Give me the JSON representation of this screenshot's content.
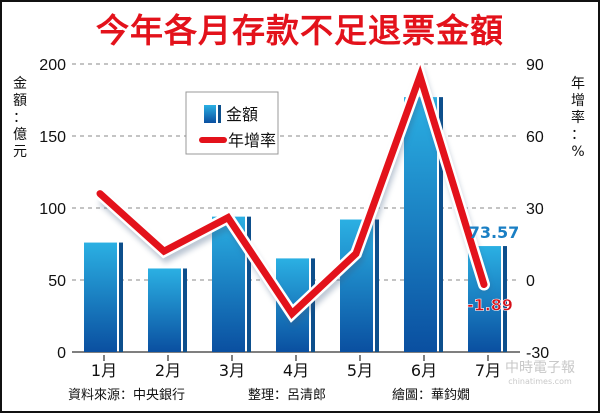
{
  "title": "今年各月存款不足退票金額",
  "left_axis_label": [
    "金",
    "額",
    "：",
    "億",
    "元"
  ],
  "right_axis_label": [
    "年",
    "增",
    "率",
    "：",
    "%"
  ],
  "legend": {
    "bar_label": "金額",
    "line_label": "年增率"
  },
  "callouts": {
    "amount": "73.57",
    "rate": "-1.89"
  },
  "credits": {
    "source": "資料來源：中央銀行",
    "editor": "整理：呂清郎",
    "artist": "繪圖：華鈞嫺"
  },
  "watermark": "中時電子報 chinatimes.com",
  "colors": {
    "title": "#e3121b",
    "bar": "#1a87c9",
    "bar_dark": "#0d4f8c",
    "line": "#e3121b",
    "callout_amount": "#1a7fc4",
    "callout_rate": "#d61019"
  },
  "chart_data": {
    "type": "bar+line",
    "title": "今年各月存款不足退票金額",
    "categories": [
      "1月",
      "2月",
      "3月",
      "4月",
      "5月",
      "6月",
      "7月"
    ],
    "series": [
      {
        "name": "金額",
        "type": "bar",
        "axis": "left",
        "unit": "億元",
        "values": [
          76,
          58,
          94,
          65,
          92,
          177,
          73.57
        ]
      },
      {
        "name": "年增率",
        "type": "line",
        "axis": "right",
        "unit": "%",
        "values": [
          36,
          12,
          26,
          -14,
          11,
          85,
          -1.89
        ]
      }
    ],
    "ylabel": "金額：億元",
    "y2label": "年增率：%",
    "ylim": [
      0,
      200
    ],
    "y2lim": [
      -30,
      90
    ],
    "yticks": [
      0,
      50,
      100,
      150,
      200
    ],
    "y2ticks": [
      -30,
      0,
      30,
      60,
      90
    ],
    "grid": "dashed horizontal",
    "legend_position": "upper-left inside",
    "annotations": [
      "73.57",
      "-1.89"
    ]
  }
}
